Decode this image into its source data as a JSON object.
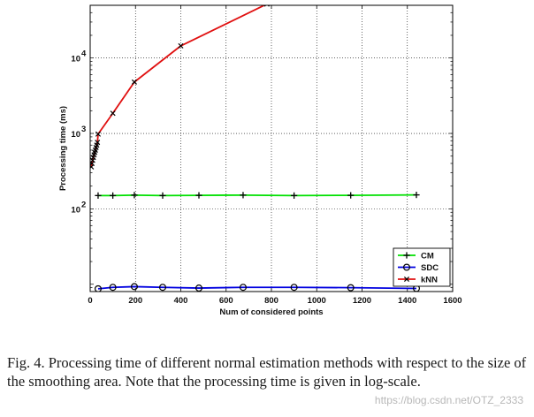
{
  "chart_data": {
    "type": "line",
    "title": "",
    "xlabel": "Num of considered points",
    "ylabel": "Processing time (ms)",
    "xlim": [
      0,
      1600
    ],
    "ylim": [
      8,
      50000
    ],
    "yscale": "log",
    "x_ticks": [
      0,
      200,
      400,
      600,
      800,
      1000,
      1200,
      1400,
      1600
    ],
    "y_ticks": [
      {
        "value": 100,
        "base": "10",
        "exp": "2"
      },
      {
        "value": 1000,
        "base": "10",
        "exp": "3"
      },
      {
        "value": 10000,
        "base": "10",
        "exp": "4"
      }
    ],
    "grid": true,
    "legend_position": "bottom-right",
    "series": [
      {
        "name": "CM",
        "color": "#00e000",
        "marker": "plus",
        "x": [
          35,
          100,
          195,
          320,
          480,
          675,
          900,
          1150,
          1440
        ],
        "y": [
          150,
          150,
          152,
          150,
          151,
          152,
          150,
          151,
          153
        ]
      },
      {
        "name": "SDC",
        "color": "#0000e0",
        "marker": "circle",
        "x": [
          35,
          100,
          195,
          320,
          480,
          675,
          900,
          1150,
          1440
        ],
        "y": [
          8.7,
          9.1,
          9.3,
          9.1,
          8.9,
          9.1,
          9.1,
          9.0,
          8.8
        ]
      },
      {
        "name": "kNN",
        "color": "#e01010",
        "marker": "x",
        "x": [
          5,
          8,
          11,
          14,
          17,
          20,
          23,
          26,
          29,
          32,
          35,
          100,
          195,
          400,
          780
        ],
        "y": [
          360,
          400,
          440,
          480,
          520,
          560,
          600,
          650,
          700,
          760,
          980,
          1850,
          4800,
          14500,
          52000
        ]
      }
    ]
  },
  "caption": "Fig. 4.   Processing time of different normal estimation methods with respect to the size of the smoothing area. Note that the processing time is given in log-scale.",
  "watermark": "https://blog.csdn.net/OTZ_2333"
}
